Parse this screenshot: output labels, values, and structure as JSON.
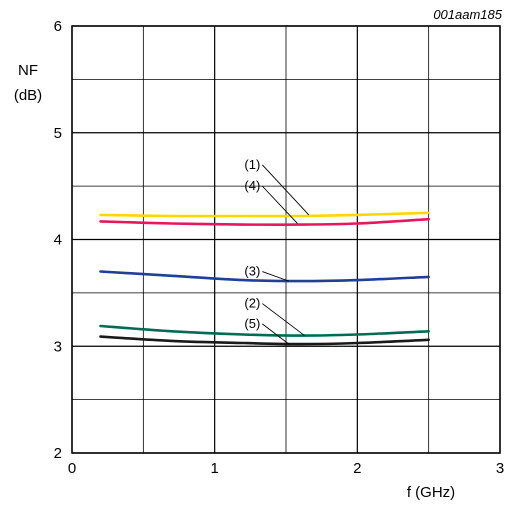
{
  "figure_id": "001aam185",
  "chart_data": {
    "type": "line",
    "xlabel": "f (GHz)",
    "ylabel_line1": "NF",
    "ylabel_line2": "(dB)",
    "xlim": [
      0,
      3
    ],
    "ylim": [
      2,
      6
    ],
    "x_ticks": [
      0,
      1,
      2,
      3
    ],
    "y_ticks": [
      2,
      3,
      4,
      5,
      6
    ],
    "x_tick_labels": [
      "0",
      "1",
      "2",
      "3"
    ],
    "y_tick_labels": [
      "2",
      "3",
      "4",
      "5",
      "6"
    ],
    "grid": true,
    "minor_grid_step": {
      "x": 0.5,
      "y": 0.5
    },
    "series": [
      {
        "callout": "(1)",
        "color": "#ffd700",
        "points": [
          [
            0.2,
            4.23
          ],
          [
            0.7,
            4.22
          ],
          [
            1.2,
            4.22
          ],
          [
            1.6,
            4.22
          ],
          [
            2.0,
            4.23
          ],
          [
            2.5,
            4.25
          ]
        ]
      },
      {
        "callout": "(4)",
        "color": "#e8175d",
        "points": [
          [
            0.2,
            4.17
          ],
          [
            0.7,
            4.15
          ],
          [
            1.2,
            4.14
          ],
          [
            1.6,
            4.14
          ],
          [
            2.0,
            4.15
          ],
          [
            2.5,
            4.19
          ]
        ]
      },
      {
        "callout": "(3)",
        "color": "#1f3f99",
        "points": [
          [
            0.2,
            3.7
          ],
          [
            0.7,
            3.66
          ],
          [
            1.2,
            3.62
          ],
          [
            1.6,
            3.61
          ],
          [
            2.0,
            3.62
          ],
          [
            2.5,
            3.65
          ]
        ]
      },
      {
        "callout": "(2)",
        "color": "#006b54",
        "points": [
          [
            0.2,
            3.19
          ],
          [
            0.7,
            3.14
          ],
          [
            1.2,
            3.11
          ],
          [
            1.6,
            3.1
          ],
          [
            2.0,
            3.11
          ],
          [
            2.5,
            3.14
          ]
        ]
      },
      {
        "callout": "(5)",
        "color": "#1a1a1a",
        "points": [
          [
            0.2,
            3.09
          ],
          [
            0.7,
            3.05
          ],
          [
            1.2,
            3.03
          ],
          [
            1.6,
            3.02
          ],
          [
            2.0,
            3.03
          ],
          [
            2.5,
            3.06
          ]
        ]
      }
    ],
    "callouts": [
      {
        "text": "(1)",
        "series": 0,
        "label_at": [
          1.32,
          4.7
        ],
        "points_to": [
          1.66,
          4.23
        ]
      },
      {
        "text": "(4)",
        "series": 1,
        "label_at": [
          1.32,
          4.5
        ],
        "points_to": [
          1.58,
          4.15
        ]
      },
      {
        "text": "(3)",
        "series": 2,
        "label_at": [
          1.32,
          3.7
        ],
        "points_to": [
          1.52,
          3.61
        ]
      },
      {
        "text": "(2)",
        "series": 3,
        "label_at": [
          1.32,
          3.4
        ],
        "points_to": [
          1.63,
          3.1
        ]
      },
      {
        "text": "(5)",
        "series": 4,
        "label_at": [
          1.32,
          3.21
        ],
        "points_to": [
          1.52,
          3.02
        ]
      }
    ]
  }
}
